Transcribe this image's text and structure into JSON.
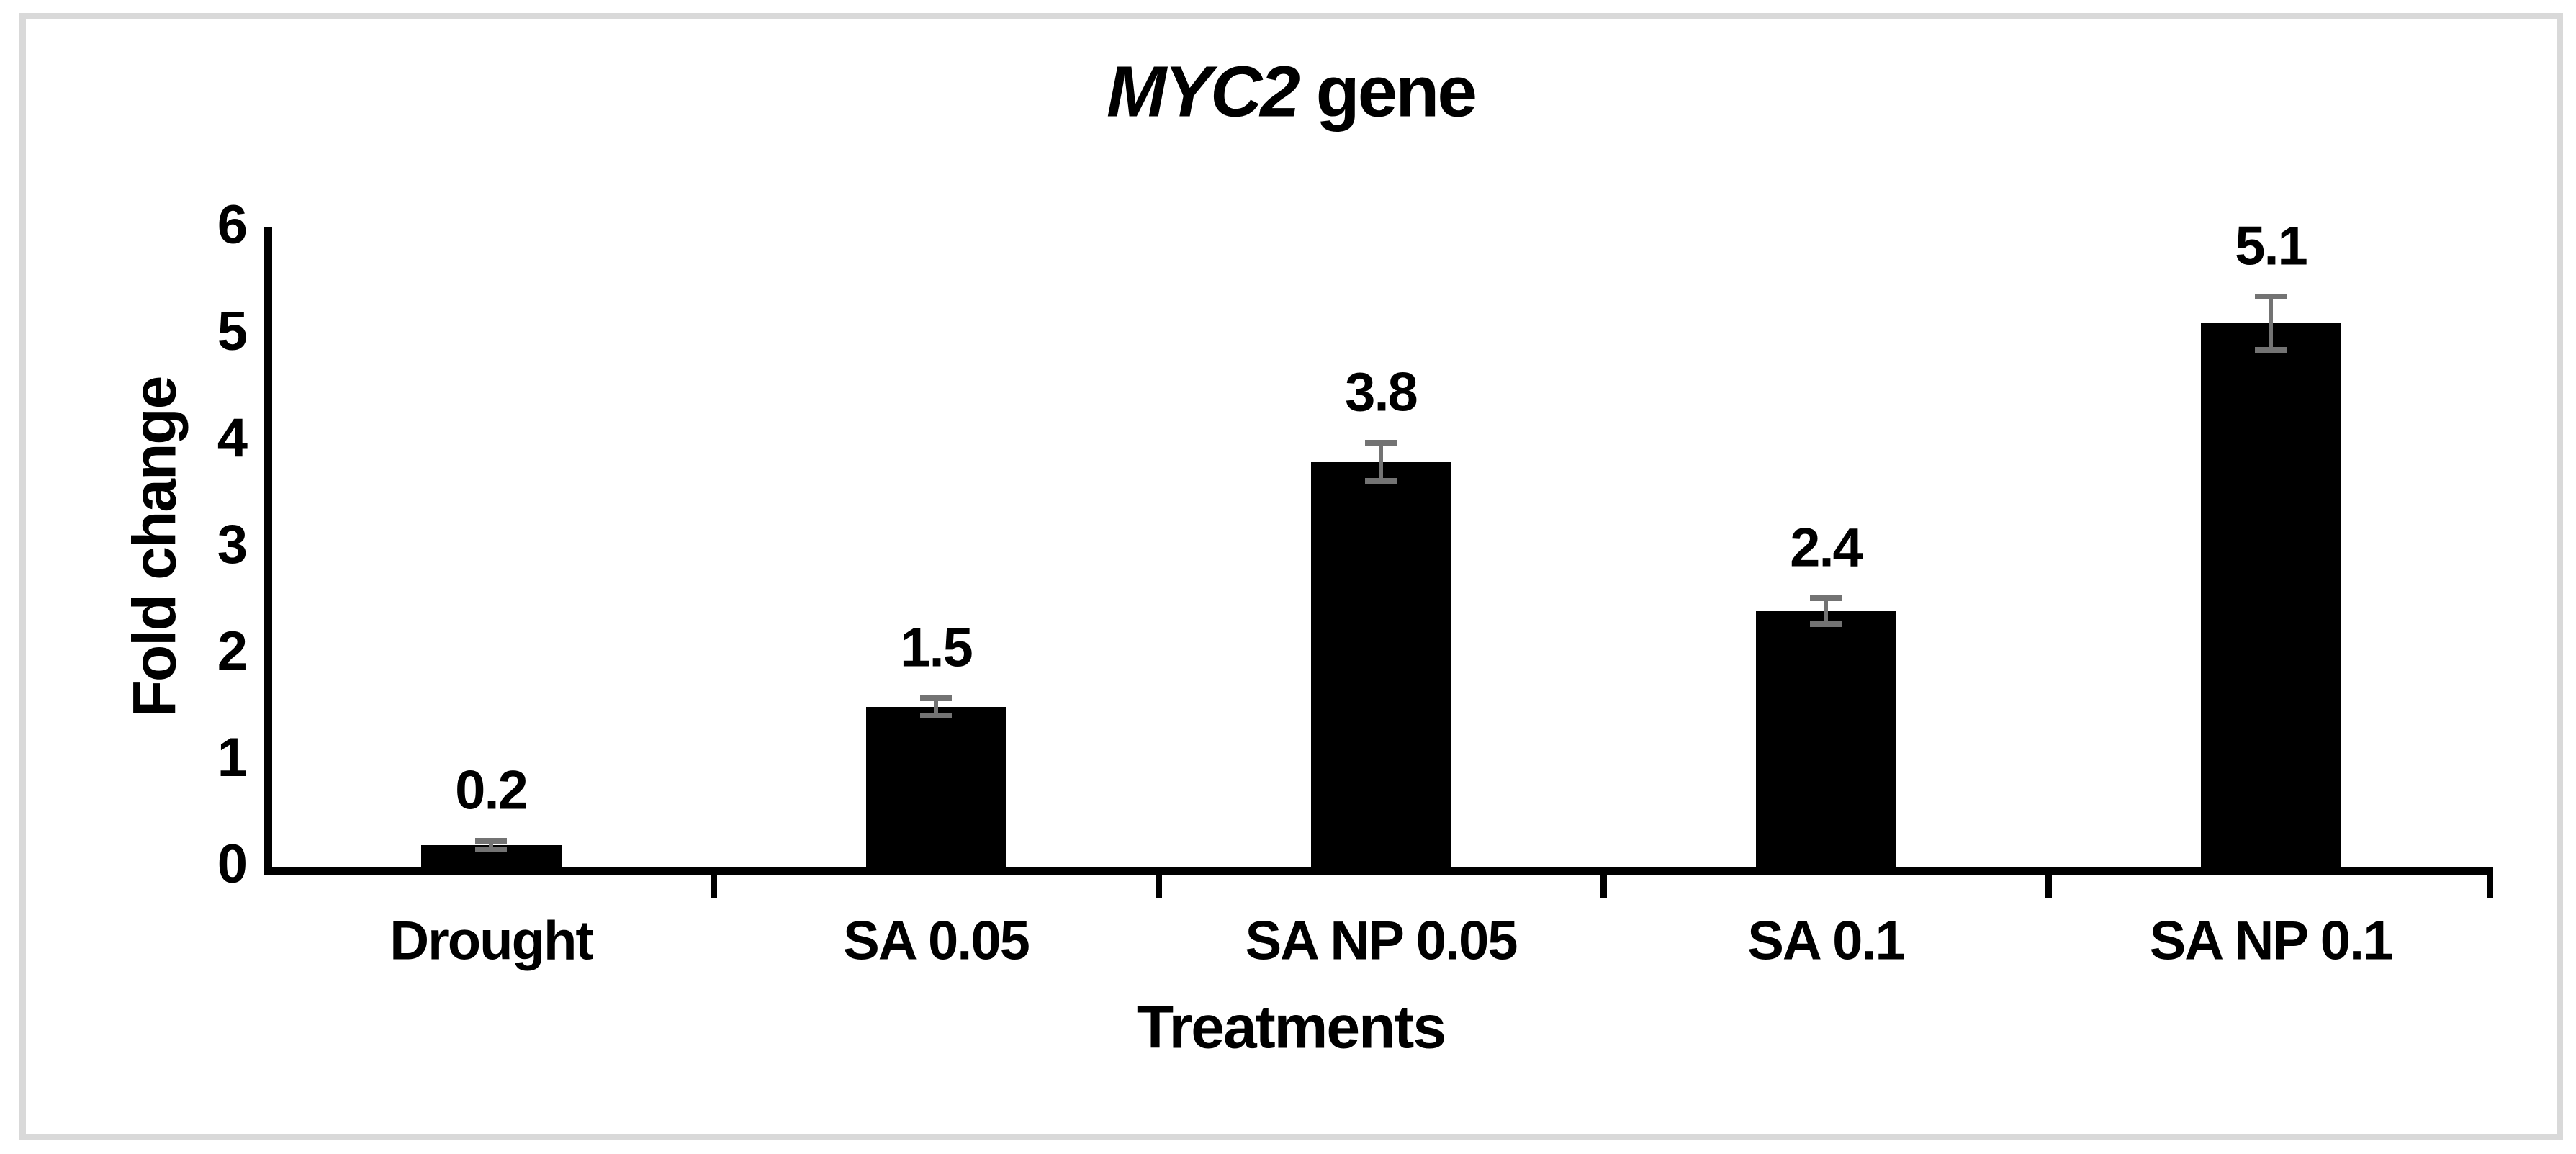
{
  "page": {
    "background_color": "#ffffff",
    "frame_color": "#d9d9d9"
  },
  "chart_data": {
    "type": "bar",
    "title": {
      "italic_part": "MYC2",
      "regular_part": " gene",
      "full": "MYC2 gene"
    },
    "xlabel": "Treatments",
    "ylabel": "Fold change",
    "categories": [
      "Drought",
      "SA 0.05",
      "SA NP 0.05",
      "SA 0.1",
      "SA NP 0.1"
    ],
    "values": [
      0.2,
      1.5,
      3.8,
      2.4,
      5.1
    ],
    "data_labels": [
      "0.2",
      "1.5",
      "3.8",
      "2.4",
      "5.1"
    ],
    "error_bars": [
      0.04,
      0.08,
      0.18,
      0.12,
      0.25
    ],
    "yticks": [
      "0",
      "1",
      "2",
      "3",
      "4",
      "5",
      "6"
    ],
    "ylim": [
      0,
      6
    ],
    "bar_color": "#000000",
    "error_bar_color": "#737373",
    "axis_color": "#000000",
    "grid": "off",
    "legend": "none"
  }
}
